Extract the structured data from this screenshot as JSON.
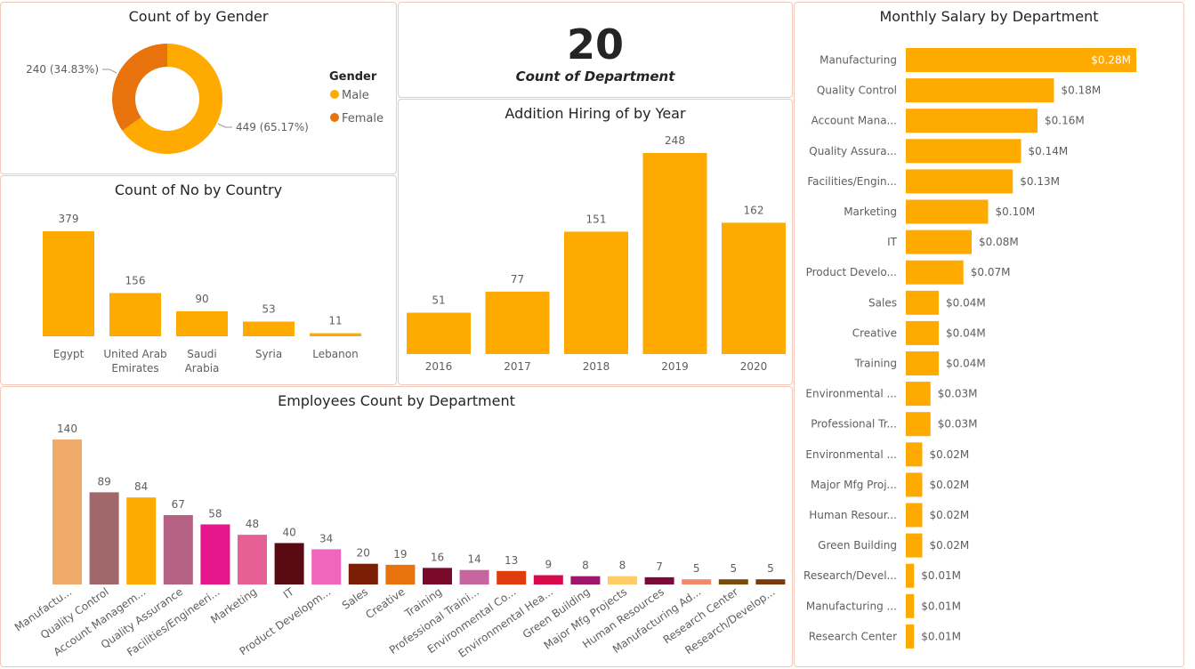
{
  "colors": {
    "primary": "#FFAA00",
    "female": "#E8730C",
    "border": "#F0C9BB",
    "text": "#252423",
    "label": "#605E5C"
  },
  "gender": {
    "title": "Count of by Gender",
    "legend_title": "Gender",
    "legend": [
      "Male",
      "Female"
    ],
    "male_label": "449 (65.17%)",
    "female_label": "240 (34.83%)"
  },
  "kpi": {
    "value": "20",
    "label": "Count of Department"
  },
  "country": {
    "title": "Count of No by Country"
  },
  "hiring": {
    "title": "Addition Hiring of by Year"
  },
  "department": {
    "title": "Employees Count by Department"
  },
  "salary": {
    "title": "Monthly Salary by Department"
  },
  "chart_data": [
    {
      "id": "gender",
      "type": "pie",
      "title": "Count of by Gender",
      "legend_title": "Gender",
      "categories": [
        "Male",
        "Female"
      ],
      "values": [
        449,
        240
      ],
      "colors": [
        "#FFAA00",
        "#E8730C"
      ],
      "data_labels": [
        "449 (65.17%)",
        "240 (34.83%)"
      ],
      "legend_placement": "right"
    },
    {
      "id": "country",
      "type": "bar",
      "title": "Count of No by Country",
      "categories": [
        [
          "Egypt"
        ],
        [
          "United Arab",
          "Emirates"
        ],
        [
          "Saudi",
          "Arabia"
        ],
        [
          "Syria"
        ],
        [
          "Lebanon"
        ]
      ],
      "values": [
        379,
        156,
        90,
        53,
        11
      ],
      "color": "#FFAA00"
    },
    {
      "id": "hiring",
      "type": "bar",
      "title": "Addition Hiring of by Year",
      "categories": [
        "2016",
        "2017",
        "2018",
        "2019",
        "2020"
      ],
      "values": [
        51,
        77,
        151,
        248,
        162
      ],
      "color": "#FFAA00"
    },
    {
      "id": "department",
      "type": "bar",
      "title": "Employees Count by Department",
      "categories": [
        "Manufactu...",
        "Quality Control",
        "Account Managem...",
        "Quality Assurance",
        "Facilities/Engineeri...",
        "Marketing",
        "IT",
        "Product Developm...",
        "Sales",
        "Creative",
        "Training",
        "Professional Traini...",
        "Environmental Co...",
        "Environmental Hea...",
        "Green Building",
        "Major Mfg Projects",
        "Human Resources",
        "Manufacturing Ad...",
        "Research Center",
        "Research/Develop..."
      ],
      "values": [
        140,
        89,
        84,
        67,
        58,
        48,
        40,
        34,
        20,
        19,
        16,
        14,
        13,
        9,
        8,
        8,
        7,
        5,
        5,
        5
      ],
      "colors": [
        "#F0AA6A",
        "#A0686A",
        "#FFAA00",
        "#B56285",
        "#E8168C",
        "#E66096",
        "#5A0A12",
        "#F066BC",
        "#7A1E06",
        "#E8730C",
        "#7A0A2A",
        "#C8649E",
        "#E03C10",
        "#D80A4C",
        "#A0146A",
        "#FFCC66",
        "#7A0A3A",
        "#F08A68",
        "#7A4C0A",
        "#7A3A0A"
      ]
    },
    {
      "id": "salary",
      "type": "bar",
      "orientation": "horizontal",
      "title": "Monthly Salary by Department",
      "categories": [
        "Manufacturing",
        "Quality Control",
        "Account Mana...",
        "Quality Assura...",
        "Facilities/Engin...",
        "Marketing",
        "IT",
        "Product Develo...",
        "Sales",
        "Creative",
        "Training",
        "Environmental ...",
        "Professional Tr...",
        "Environmental ...",
        "Major Mfg Proj...",
        "Human Resour...",
        "Green Building",
        "Research/Devel...",
        "Manufacturing ...",
        "Research Center"
      ],
      "values": [
        0.28,
        0.18,
        0.16,
        0.14,
        0.13,
        0.1,
        0.08,
        0.07,
        0.04,
        0.04,
        0.04,
        0.03,
        0.03,
        0.02,
        0.02,
        0.02,
        0.02,
        0.01,
        0.01,
        0.01
      ],
      "data_labels": [
        "$0.28M",
        "$0.18M",
        "$0.16M",
        "$0.14M",
        "$0.13M",
        "$0.10M",
        "$0.08M",
        "$0.07M",
        "$0.04M",
        "$0.04M",
        "$0.04M",
        "$0.03M",
        "$0.03M",
        "$0.02M",
        "$0.02M",
        "$0.02M",
        "$0.02M",
        "$0.01M",
        "$0.01M",
        "$0.01M"
      ],
      "unit": "$M",
      "color": "#FFAA00"
    }
  ]
}
